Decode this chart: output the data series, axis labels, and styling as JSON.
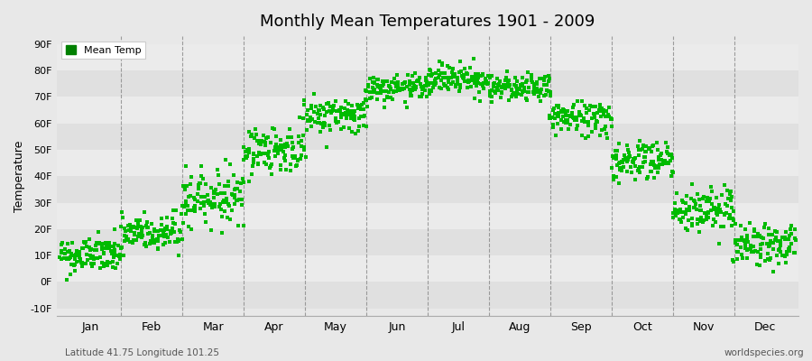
{
  "title": "Monthly Mean Temperatures 1901 - 2009",
  "ylabel": "Temperature",
  "xlabel_bottom_left": "Latitude 41.75 Longitude 101.25",
  "xlabel_bottom_right": "worldspecies.org",
  "legend_label": "Mean Temp",
  "legend_color": "#008000",
  "dot_color": "#00bb00",
  "dot_size": 5,
  "ylim": [
    -10,
    90
  ],
  "yticks": [
    -10,
    0,
    10,
    20,
    30,
    40,
    50,
    60,
    70,
    80,
    90
  ],
  "ytick_labels": [
    "-10F",
    "0F",
    "10F",
    "20F",
    "30F",
    "40F",
    "50F",
    "60F",
    "70F",
    "80F",
    "90F"
  ],
  "background_color": "#e8e8e8",
  "plot_bg_color": "#e8e8e8",
  "month_names": [
    "Jan",
    "Feb",
    "Mar",
    "Apr",
    "May",
    "Jun",
    "Jul",
    "Aug",
    "Sep",
    "Oct",
    "Nov",
    "Dec"
  ],
  "monthly_mean_temps_F": [
    10,
    18,
    32,
    50,
    63,
    73,
    77,
    73,
    62,
    46,
    27,
    14
  ],
  "monthly_temp_trend": [
    0.03,
    0.04,
    0.05,
    0.04,
    0.03,
    0.02,
    0.02,
    0.02,
    0.03,
    0.04,
    0.04,
    0.03
  ],
  "monthly_spread_F": [
    3.5,
    4.0,
    5.0,
    4.5,
    3.5,
    2.5,
    3.0,
    2.5,
    3.5,
    4.0,
    4.5,
    4.0
  ],
  "n_years": 109,
  "seed": 42,
  "band_colors": [
    "#e0e0e0",
    "#ebebeb"
  ],
  "dashed_line_color": "#888888"
}
